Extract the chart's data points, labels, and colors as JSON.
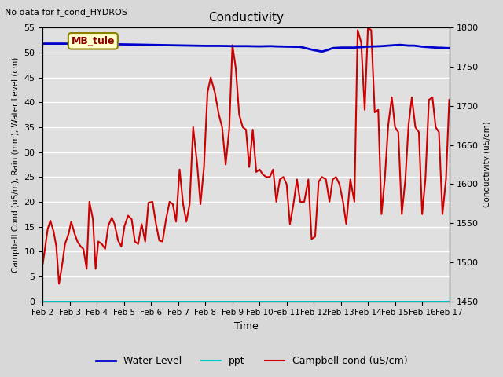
{
  "title": "Conductivity",
  "top_left_text": "No data for f_cond_HYDROS",
  "annotation_box": "MB_tule",
  "xlabel": "Time",
  "ylabel_left": "Campbell Cond (uS/m), Rain (mm), Water Level (cm)",
  "ylabel_right": "Conductivity (uS/cm)",
  "ylim_left": [
    0,
    55
  ],
  "ylim_right": [
    1450,
    1800
  ],
  "xlim": [
    0,
    15
  ],
  "xtick_labels": [
    "Feb 2",
    "Feb 3",
    "Feb 4",
    "Feb 5",
    "Feb 6",
    "Feb 7",
    "Feb 8",
    "Feb 9",
    "Feb 10",
    "Feb 11",
    "Feb 12",
    "Feb 13",
    "Feb 14",
    "Feb 15",
    "Feb 16",
    "Feb 17"
  ],
  "yticks_left": [
    0,
    5,
    10,
    15,
    20,
    25,
    30,
    35,
    40,
    45,
    50,
    55
  ],
  "yticks_right": [
    1450,
    1500,
    1550,
    1600,
    1650,
    1700,
    1750,
    1800
  ],
  "fig_facecolor": "#d8d8d8",
  "plot_bg_color": "#e0e0e0",
  "grid_color": "#ffffff",
  "legend_entries": [
    "Water Level",
    "ppt",
    "Campbell cond (uS/cm)"
  ],
  "legend_colors": [
    "#0000cc",
    "#00cccc",
    "#cc0000"
  ],
  "water_level_x": [
    0,
    0.5,
    1,
    1.5,
    2,
    2.5,
    3,
    3.5,
    4,
    4.5,
    5,
    5.5,
    6,
    6.5,
    7,
    7.5,
    8,
    8.4,
    8.6,
    9,
    9.5,
    10,
    10.3,
    10.5,
    10.7,
    11,
    11.5,
    12,
    12.5,
    13,
    13.2,
    13.5,
    13.7,
    14,
    14.5,
    15
  ],
  "water_level_y": [
    51.8,
    51.8,
    51.8,
    51.8,
    51.75,
    51.7,
    51.65,
    51.6,
    51.55,
    51.5,
    51.45,
    51.4,
    51.35,
    51.35,
    51.3,
    51.3,
    51.25,
    51.3,
    51.25,
    51.2,
    51.15,
    50.5,
    50.2,
    50.5,
    50.9,
    51.0,
    51.0,
    51.2,
    51.3,
    51.5,
    51.55,
    51.4,
    51.4,
    51.2,
    51.0,
    50.9
  ],
  "water_level_color": "#0000cc",
  "water_level_linewidth": 2,
  "ppt_color": "#00cccc",
  "ppt_linewidth": 1.5,
  "campbell_cond_x": [
    0,
    0.08,
    0.18,
    0.28,
    0.4,
    0.5,
    0.6,
    0.72,
    0.82,
    0.95,
    1.05,
    1.18,
    1.28,
    1.4,
    1.5,
    1.62,
    1.72,
    1.85,
    1.95,
    2.05,
    2.18,
    2.3,
    2.42,
    2.55,
    2.65,
    2.78,
    2.9,
    3.02,
    3.15,
    3.28,
    3.4,
    3.52,
    3.65,
    3.78,
    3.9,
    4.05,
    4.18,
    4.3,
    4.42,
    4.55,
    4.68,
    4.8,
    4.92,
    5.05,
    5.18,
    5.3,
    5.42,
    5.55,
    5.7,
    5.82,
    5.95,
    6.08,
    6.2,
    6.35,
    6.5,
    6.62,
    6.75,
    6.88,
    7.0,
    7.12,
    7.25,
    7.38,
    7.5,
    7.62,
    7.75,
    7.88,
    8.0,
    8.12,
    8.25,
    8.38,
    8.5,
    8.62,
    8.75,
    8.88,
    9.0,
    9.12,
    9.25,
    9.38,
    9.5,
    9.65,
    9.8,
    9.92,
    10.05,
    10.18,
    10.3,
    10.45,
    10.58,
    10.7,
    10.82,
    10.95,
    11.08,
    11.2,
    11.35,
    11.5,
    11.62,
    11.75,
    11.88,
    12.0,
    12.12,
    12.25,
    12.38,
    12.5,
    12.62,
    12.75,
    12.88,
    13.0,
    13.12,
    13.25,
    13.38,
    13.5,
    13.62,
    13.75,
    13.88,
    14.0,
    14.12,
    14.25,
    14.38,
    14.5,
    14.62,
    14.75,
    14.88,
    15.0
  ],
  "campbell_cond_y": [
    7.5,
    10.5,
    14.5,
    16.2,
    14.0,
    11.0,
    3.5,
    7.5,
    11.5,
    13.5,
    16.0,
    13.5,
    12.0,
    11.0,
    10.5,
    6.5,
    20.0,
    16.5,
    6.5,
    12.0,
    11.5,
    10.5,
    15.2,
    16.8,
    15.5,
    12.2,
    11.0,
    15.2,
    17.2,
    16.5,
    12.0,
    11.5,
    15.5,
    12.0,
    19.8,
    20.0,
    15.5,
    12.2,
    12.0,
    16.5,
    20.0,
    19.5,
    16.0,
    26.5,
    19.5,
    16.0,
    19.5,
    35.0,
    27.5,
    19.5,
    27.0,
    42.0,
    45.0,
    42.0,
    37.5,
    35.0,
    27.5,
    34.5,
    51.5,
    47.0,
    37.5,
    35.0,
    34.5,
    27.0,
    34.5,
    26.0,
    26.5,
    25.5,
    25.0,
    25.0,
    26.5,
    20.0,
    24.5,
    25.0,
    23.5,
    15.5,
    19.5,
    24.5,
    20.0,
    20.0,
    24.5,
    12.5,
    13.0,
    24.0,
    25.0,
    24.5,
    20.0,
    24.5,
    25.0,
    23.5,
    20.0,
    15.5,
    24.5,
    20.0,
    54.5,
    52.0,
    38.5,
    55.0,
    54.5,
    38.0,
    38.5,
    17.5,
    24.5,
    35.5,
    41.0,
    35.0,
    34.0,
    17.5,
    24.5,
    35.5,
    41.0,
    35.0,
    34.0,
    17.5,
    24.5,
    40.5,
    41.0,
    35.0,
    34.0,
    17.5,
    24.5,
    40.5
  ],
  "campbell_color": "#cc0000",
  "campbell_linewidth": 1.5
}
